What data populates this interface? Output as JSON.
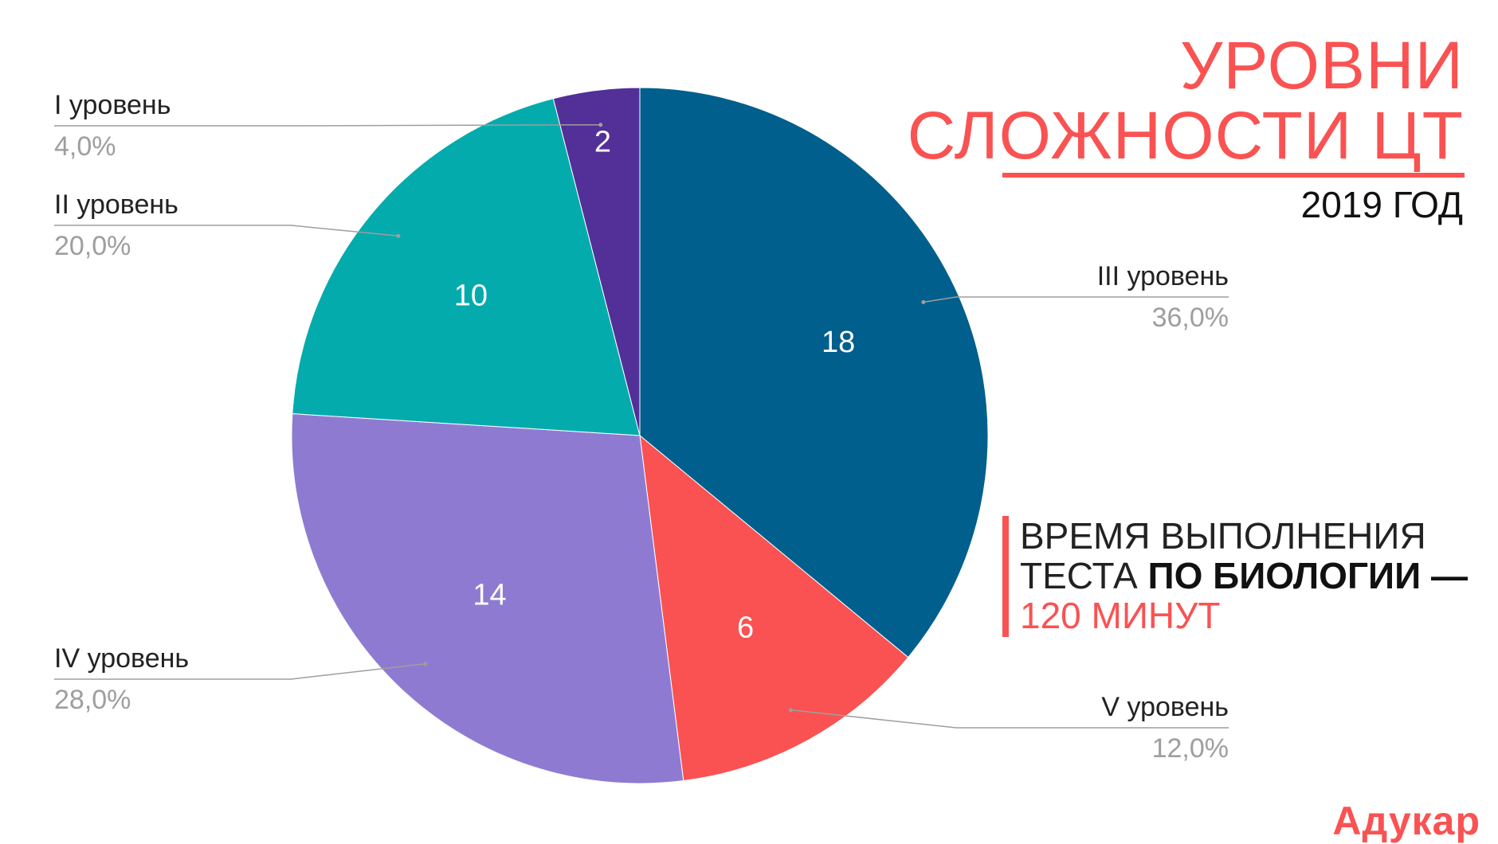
{
  "header": {
    "title_line1": "УРОВНИ",
    "title_line2": "СЛОЖНОСТИ ЦТ",
    "year": "2019 ГОД"
  },
  "note": {
    "line1": "ВРЕМЯ ВЫПОЛНЕНИЯ",
    "line2_plain": "ТЕСТА ",
    "line2_bold": "ПО БИОЛОГИИ —",
    "line3": "120 МИНУТ"
  },
  "logo": "Адукар",
  "colors": {
    "accent": "#fa5252",
    "level_III": "#005f8c",
    "level_V": "#fa5252",
    "level_IV": "#8e7bd1",
    "level_II": "#04abac",
    "level_I": "#532f98"
  },
  "chart_data": {
    "type": "pie",
    "title": "",
    "start_angle": "12 o'clock",
    "direction": "clockwise",
    "slices": [
      {
        "name": "III уровень",
        "value": 18,
        "percent": "36,0%",
        "color": "#005f8c"
      },
      {
        "name": "V уровень",
        "value": 6,
        "percent": "12,0%",
        "color": "#fa5252"
      },
      {
        "name": "IV уровень",
        "value": 14,
        "percent": "28,0%",
        "color": "#8e7bd1"
      },
      {
        "name": "II уровень",
        "value": 10,
        "percent": "20,0%",
        "color": "#04abac"
      },
      {
        "name": "I уровень",
        "value": 2,
        "percent": "4,0%",
        "color": "#532f98"
      }
    ]
  }
}
